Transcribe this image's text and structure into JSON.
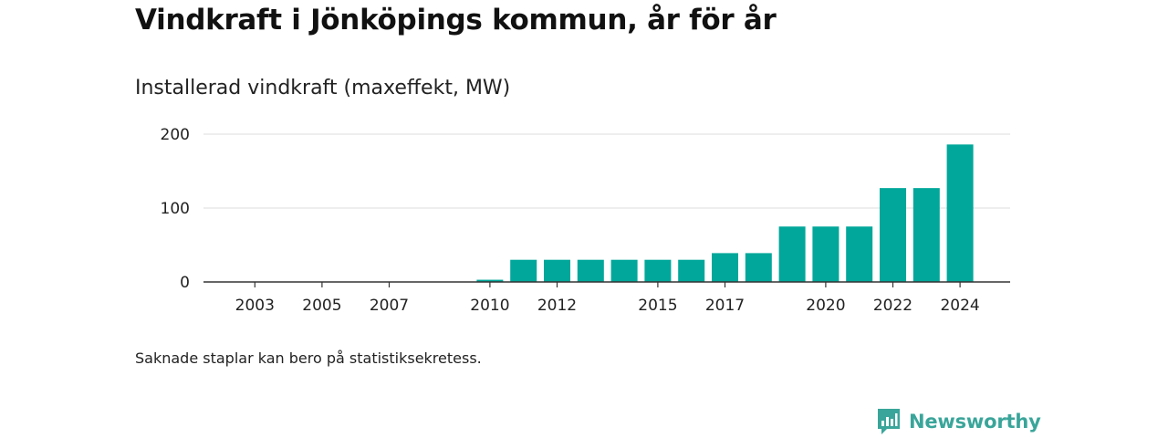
{
  "title": "Vindkraft i Jönköpings kommun, år för år",
  "chart_data": {
    "type": "bar",
    "subtitle": "Installerad vindkraft (maxeffekt, MW)",
    "x": [
      2002,
      2003,
      2004,
      2005,
      2006,
      2007,
      2008,
      2009,
      2010,
      2011,
      2012,
      2013,
      2014,
      2015,
      2016,
      2017,
      2018,
      2019,
      2020,
      2021,
      2022,
      2023,
      2024
    ],
    "values": [
      0,
      0,
      0,
      0,
      0,
      0,
      0,
      0,
      3,
      30,
      30,
      30,
      30,
      30,
      30,
      39,
      39,
      75,
      75,
      75,
      127,
      127,
      186
    ],
    "x_tick_labels": [
      "2003",
      "2005",
      "2007",
      "2010",
      "2012",
      "2015",
      "2017",
      "2020",
      "2022",
      "2024"
    ],
    "y_ticks": [
      0,
      100,
      200
    ],
    "ylim": [
      0,
      200
    ],
    "grid": true,
    "color": "#00a79a"
  },
  "note": "Saknade staplar kan bero på statistiksekretess.",
  "logo": {
    "text": "Newsworthy",
    "icon": "newsworthy-chart-icon",
    "color": "#3aa59a"
  }
}
